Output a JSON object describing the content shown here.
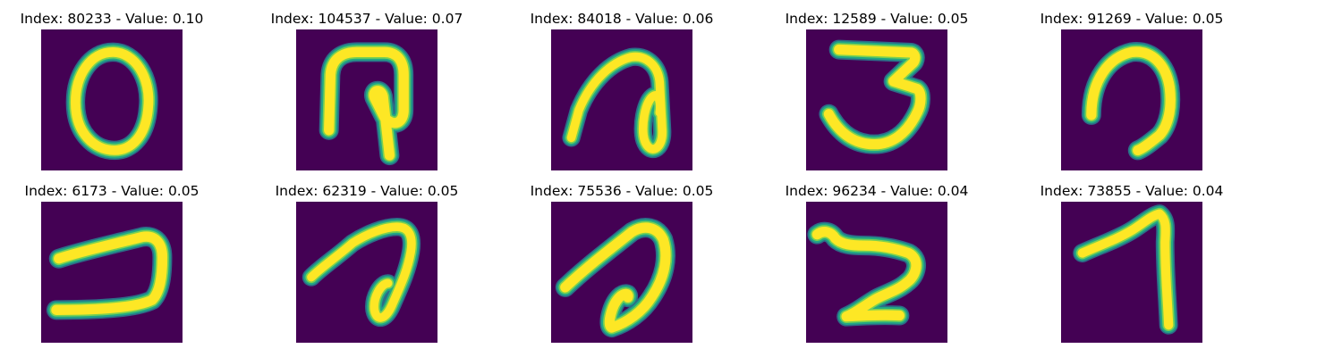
{
  "colors": {
    "background": "#440154",
    "stroke_core": "#FDE725",
    "stroke_mid": "#7AD151",
    "stroke_edge": "#22A884",
    "stroke_halo": "#2A788E"
  },
  "panels": [
    {
      "title": "Index: 80233 - Value: 0.10",
      "glyph_icon": "handwritten-zero-icon"
    },
    {
      "title": "Index: 104537 - Value: 0.07",
      "glyph_icon": "handwritten-loop-stem-icon"
    },
    {
      "title": "Index: 84018 - Value: 0.06",
      "glyph_icon": "handwritten-slanted-loop-icon"
    },
    {
      "title": "Index: 12589 - Value: 0.05",
      "glyph_icon": "handwritten-three-icon"
    },
    {
      "title": "Index: 91269 - Value: 0.05",
      "glyph_icon": "handwritten-arch-icon"
    },
    {
      "title": "Index: 6173 - Value: 0.05",
      "glyph_icon": "handwritten-hook-icon"
    },
    {
      "title": "Index: 62319 - Value: 0.05",
      "glyph_icon": "handwritten-loop-tail-icon"
    },
    {
      "title": "Index: 75536 - Value: 0.05",
      "glyph_icon": "handwritten-slanted-arch-icon"
    },
    {
      "title": "Index: 96234 - Value: 0.04",
      "glyph_icon": "handwritten-z-shape-icon"
    },
    {
      "title": "Index: 73855 - Value: 0.04",
      "glyph_icon": "handwritten-seven-icon"
    }
  ]
}
